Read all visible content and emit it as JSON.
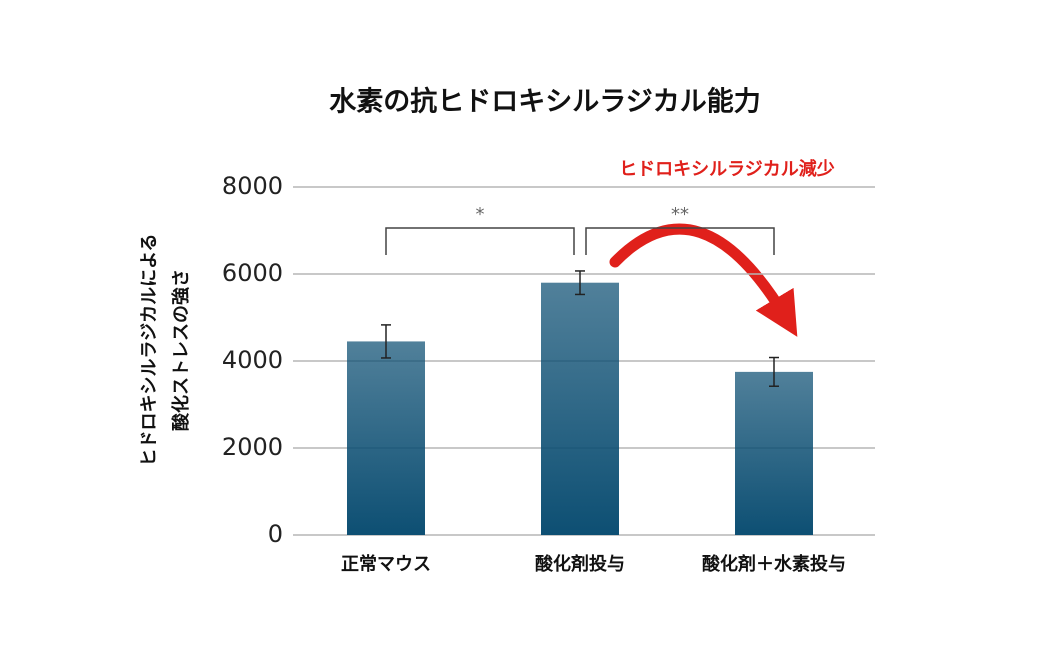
{
  "chart_data": {
    "type": "bar",
    "title": "水素の抗ヒドロキシルラジカル能力",
    "y_label": [
      "ヒドロキシルラジカルによる",
      "酸化ストレスの強さ"
    ],
    "annotation": "ヒドロキシルラジカル減少",
    "categories": [
      "正常マウス",
      "酸化剤投与",
      "酸化剤＋水素投与"
    ],
    "values": [
      4450,
      5800,
      3750
    ],
    "errors": [
      380,
      270,
      330
    ],
    "color": "#0d4f73",
    "annotation_color": "#e0201b",
    "ylim": [
      0,
      8000
    ],
    "yticks": [
      0,
      2000,
      4000,
      6000,
      8000
    ],
    "grid": true,
    "significance": [
      {
        "pair": [
          0,
          1
        ],
        "label": "*"
      },
      {
        "pair": [
          1,
          2
        ],
        "label": "**"
      }
    ]
  }
}
